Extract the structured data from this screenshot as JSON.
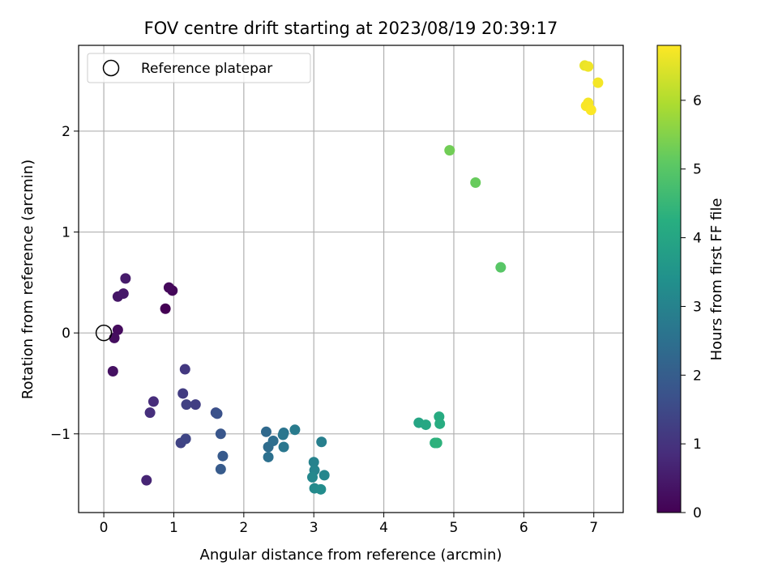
{
  "chart_data": {
    "type": "scatter",
    "title": "FOV centre drift starting at 2023/08/19 20:39:17",
    "xlabel": "Angular distance from reference (arcmin)",
    "ylabel": "Rotation from reference (arcmin)",
    "xlim": [
      -0.36,
      7.42
    ],
    "ylim": [
      -1.78,
      2.85
    ],
    "x_ticks": [
      0,
      1,
      2,
      3,
      4,
      5,
      6,
      7
    ],
    "x_tick_labels": [
      "0",
      "1",
      "2",
      "3",
      "4",
      "5",
      "6",
      "7"
    ],
    "y_ticks": [
      -1,
      0,
      1,
      2
    ],
    "y_tick_labels": [
      "−1",
      "0",
      "1",
      "2"
    ],
    "grid": true,
    "legend": {
      "location": "upper-left",
      "entries": [
        {
          "label": "Reference platepar",
          "marker": "open-circle"
        }
      ]
    },
    "reference_point": {
      "x": 0,
      "y": 0
    },
    "colorbar": {
      "label": "Hours from first FF file",
      "min": 0,
      "max": 6.8,
      "ticks": [
        0,
        1,
        2,
        3,
        4,
        5,
        6
      ],
      "tick_labels": [
        "0",
        "1",
        "2",
        "3",
        "4",
        "5",
        "6"
      ],
      "colormap": "viridis"
    },
    "series": [
      {
        "points": [
          {
            "x": 0.88,
            "y": 0.24,
            "hours": 0.0
          },
          {
            "x": 0.98,
            "y": 0.42,
            "hours": 0.1
          },
          {
            "x": 0.93,
            "y": 0.45,
            "hours": 0.15
          },
          {
            "x": 0.2,
            "y": 0.03,
            "hours": 0.2
          },
          {
            "x": 0.15,
            "y": -0.05,
            "hours": 0.25
          },
          {
            "x": 0.13,
            "y": -0.38,
            "hours": 0.3
          },
          {
            "x": 0.2,
            "y": 0.36,
            "hours": 0.4
          },
          {
            "x": 0.28,
            "y": 0.39,
            "hours": 0.45
          },
          {
            "x": 0.31,
            "y": 0.54,
            "hours": 0.5
          },
          {
            "x": 0.61,
            "y": -1.46,
            "hours": 0.7
          },
          {
            "x": 0.71,
            "y": -0.68,
            "hours": 0.85
          },
          {
            "x": 0.66,
            "y": -0.79,
            "hours": 0.9
          },
          {
            "x": 1.16,
            "y": -0.36,
            "hours": 1.1
          },
          {
            "x": 1.13,
            "y": -0.6,
            "hours": 1.2
          },
          {
            "x": 1.31,
            "y": -0.71,
            "hours": 1.25
          },
          {
            "x": 1.18,
            "y": -0.71,
            "hours": 1.3
          },
          {
            "x": 1.1,
            "y": -1.09,
            "hours": 1.35
          },
          {
            "x": 1.17,
            "y": -1.05,
            "hours": 1.4
          },
          {
            "x": 1.6,
            "y": -0.79,
            "hours": 1.6
          },
          {
            "x": 1.62,
            "y": -0.8,
            "hours": 1.7
          },
          {
            "x": 1.67,
            "y": -1.0,
            "hours": 1.8
          },
          {
            "x": 1.7,
            "y": -1.22,
            "hours": 1.9
          },
          {
            "x": 1.67,
            "y": -1.35,
            "hours": 1.95
          },
          {
            "x": 2.32,
            "y": -0.98,
            "hours": 2.3
          },
          {
            "x": 2.35,
            "y": -1.13,
            "hours": 2.4
          },
          {
            "x": 2.42,
            "y": -1.07,
            "hours": 2.45
          },
          {
            "x": 2.35,
            "y": -1.23,
            "hours": 2.5
          },
          {
            "x": 2.57,
            "y": -0.99,
            "hours": 2.6
          },
          {
            "x": 2.56,
            "y": -1.01,
            "hours": 2.65
          },
          {
            "x": 2.57,
            "y": -1.13,
            "hours": 2.7
          },
          {
            "x": 2.73,
            "y": -0.96,
            "hours": 2.8
          },
          {
            "x": 3.11,
            "y": -1.08,
            "hours": 2.9
          },
          {
            "x": 3.0,
            "y": -1.28,
            "hours": 3.0
          },
          {
            "x": 3.01,
            "y": -1.36,
            "hours": 3.05
          },
          {
            "x": 3.15,
            "y": -1.41,
            "hours": 3.1
          },
          {
            "x": 2.98,
            "y": -1.43,
            "hours": 3.15
          },
          {
            "x": 3.01,
            "y": -1.54,
            "hours": 3.2
          },
          {
            "x": 3.1,
            "y": -1.55,
            "hours": 3.25
          },
          {
            "x": 4.5,
            "y": -0.89,
            "hours": 4.0
          },
          {
            "x": 4.6,
            "y": -0.91,
            "hours": 4.05
          },
          {
            "x": 4.79,
            "y": -0.83,
            "hours": 4.15
          },
          {
            "x": 4.8,
            "y": -0.9,
            "hours": 4.2
          },
          {
            "x": 4.73,
            "y": -1.09,
            "hours": 4.3
          },
          {
            "x": 4.76,
            "y": -1.09,
            "hours": 4.35
          },
          {
            "x": 5.67,
            "y": 0.65,
            "hours": 5.0
          },
          {
            "x": 5.31,
            "y": 1.49,
            "hours": 5.2
          },
          {
            "x": 4.94,
            "y": 1.81,
            "hours": 5.3
          },
          {
            "x": 6.87,
            "y": 2.65,
            "hours": 6.6
          },
          {
            "x": 6.92,
            "y": 2.64,
            "hours": 6.65
          },
          {
            "x": 7.06,
            "y": 2.48,
            "hours": 6.7
          },
          {
            "x": 6.92,
            "y": 2.28,
            "hours": 6.72
          },
          {
            "x": 6.89,
            "y": 2.25,
            "hours": 6.75
          },
          {
            "x": 6.96,
            "y": 2.21,
            "hours": 6.78
          }
        ]
      }
    ]
  }
}
